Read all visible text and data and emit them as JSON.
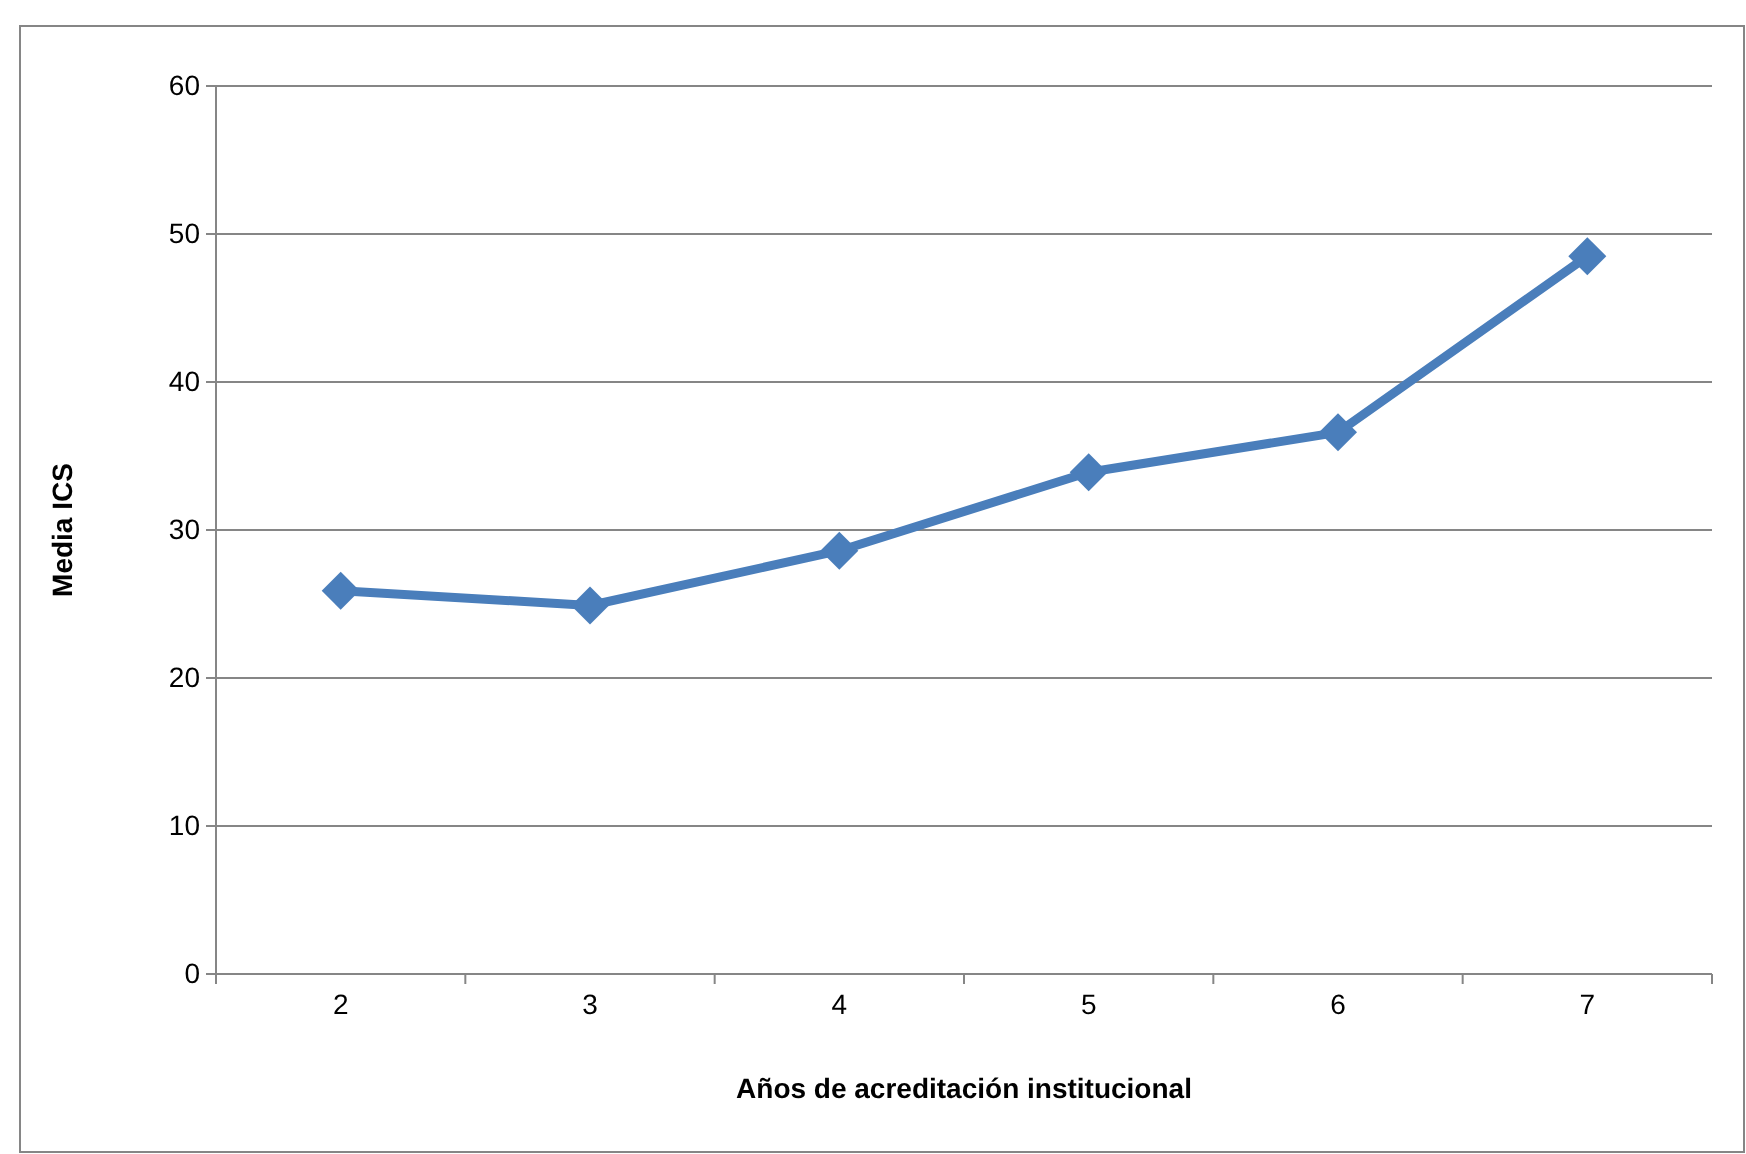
{
  "chart_data": {
    "type": "line",
    "xlabel": "Años de acreditación institucional",
    "ylabel": "Media ICS",
    "categories": [
      "2",
      "3",
      "4",
      "5",
      "6",
      "7"
    ],
    "series": [
      {
        "color": "#4a7ebb",
        "values": [
          25.9,
          24.9,
          28.6,
          33.9,
          36.6,
          48.5
        ]
      }
    ],
    "ylim": [
      0,
      60
    ],
    "yticks": [
      0,
      10,
      20,
      30,
      40,
      50,
      60
    ],
    "grid": "y",
    "marker": "diamond",
    "line_style": "solid"
  }
}
